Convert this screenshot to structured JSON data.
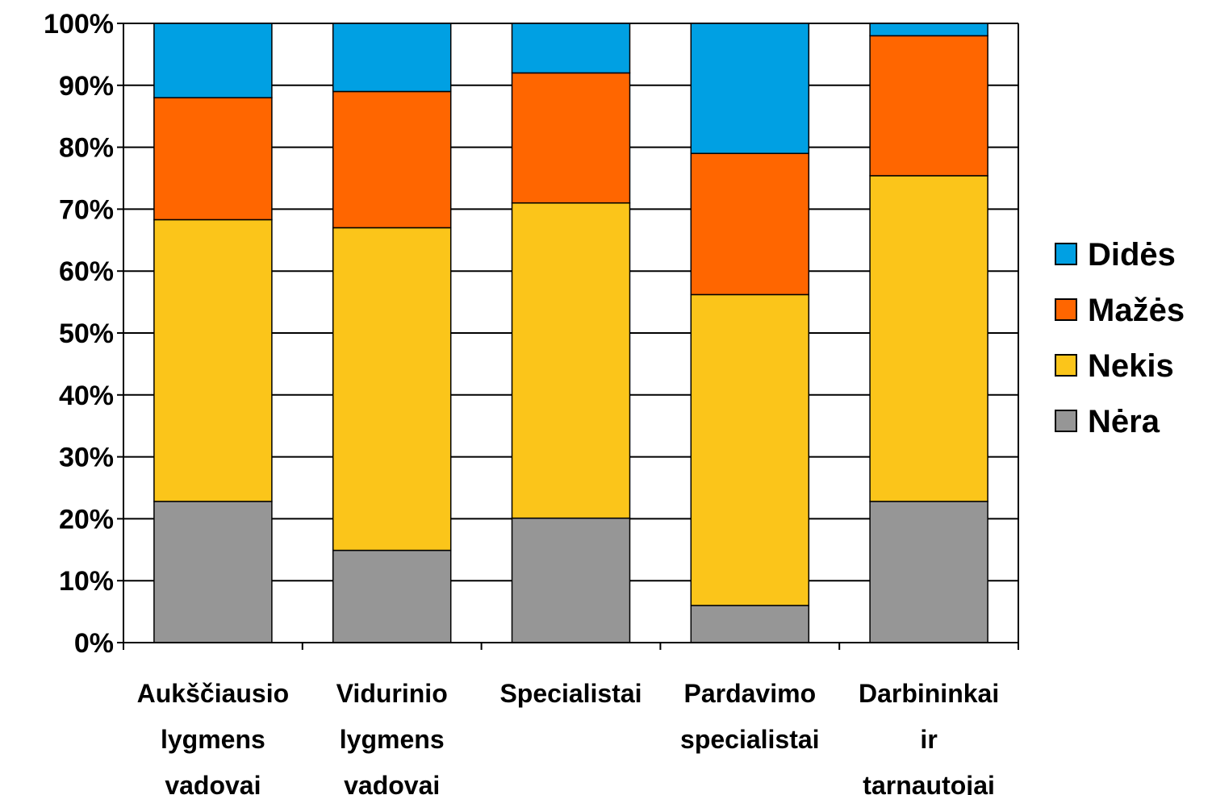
{
  "chart_data": {
    "type": "bar",
    "stacked": true,
    "percent": true,
    "categories": [
      [
        "Aukščiausio",
        "lygmens",
        "vadovai"
      ],
      [
        "Vidurinio",
        "lygmens",
        "vadovai"
      ],
      [
        "Specialistai"
      ],
      [
        "Pardavimo",
        "specialistai"
      ],
      [
        "Darbininkai",
        "ir",
        "tarnautojai"
      ]
    ],
    "series": [
      {
        "name": "Nėra",
        "color": "#969696",
        "values": [
          22.8,
          14.9,
          20.1,
          6.0,
          22.8
        ]
      },
      {
        "name": "Nekis",
        "color": "#FBC51A",
        "values": [
          45.5,
          52.1,
          50.9,
          50.2,
          52.6
        ]
      },
      {
        "name": "Mažės",
        "color": "#FF6600",
        "values": [
          19.7,
          22.0,
          21.0,
          22.8,
          22.6
        ]
      },
      {
        "name": "Didės",
        "color": "#00A0E3",
        "values": [
          12.0,
          11.0,
          8.0,
          21.0,
          2.0
        ]
      }
    ],
    "legend_order": [
      "Didės",
      "Mažės",
      "Nekis",
      "Nėra"
    ],
    "y_ticks": [
      "0%",
      "10%",
      "20%",
      "30%",
      "40%",
      "50%",
      "60%",
      "70%",
      "80%",
      "90%",
      "100%"
    ],
    "ylim": [
      0,
      100
    ],
    "grid": true,
    "legend_position": "right",
    "title": "",
    "xlabel": "",
    "ylabel": ""
  }
}
